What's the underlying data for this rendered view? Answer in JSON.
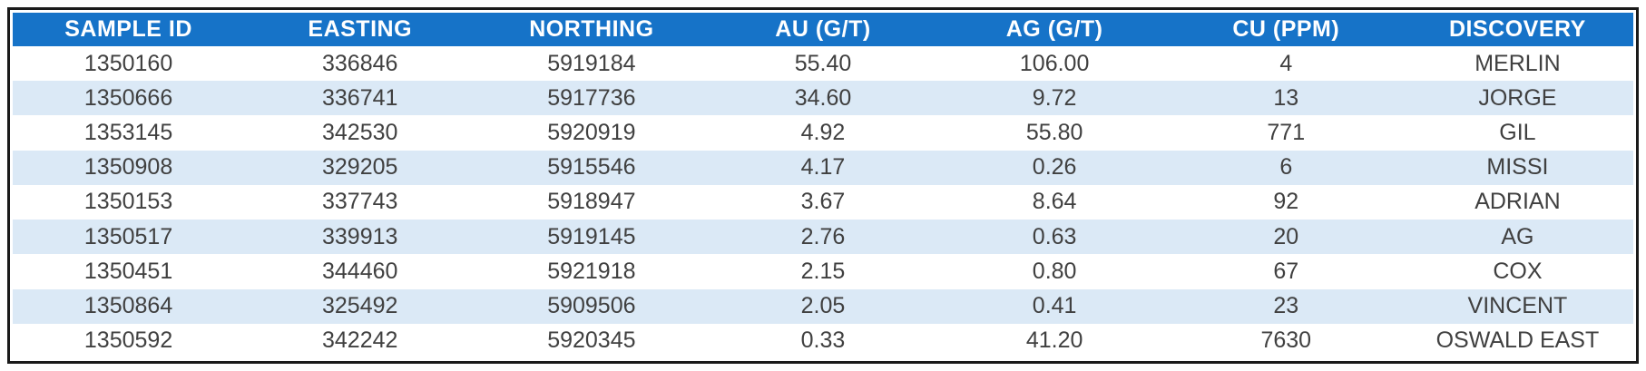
{
  "chart_data": {
    "type": "table",
    "columns": [
      "SAMPLE ID",
      "EASTING",
      "NORTHING",
      "AU (G/T)",
      "AG (G/T)",
      "CU (PPM)",
      "DISCOVERY"
    ],
    "rows": [
      [
        "1350160",
        "336846",
        "5919184",
        "55.40",
        "106.00",
        "4",
        "MERLIN"
      ],
      [
        "1350666",
        "336741",
        "5917736",
        "34.60",
        "9.72",
        "13",
        "JORGE"
      ],
      [
        "1353145",
        "342530",
        "5920919",
        "4.92",
        "55.80",
        "771",
        "GIL"
      ],
      [
        "1350908",
        "329205",
        "5915546",
        "4.17",
        "0.26",
        "6",
        "MISSI"
      ],
      [
        "1350153",
        "337743",
        "5918947",
        "3.67",
        "8.64",
        "92",
        "ADRIAN"
      ],
      [
        "1350517",
        "339913",
        "5919145",
        "2.76",
        "0.63",
        "20",
        "AG"
      ],
      [
        "1350451",
        "344460",
        "5921918",
        "2.15",
        "0.80",
        "67",
        "COX"
      ],
      [
        "1350864",
        "325492",
        "5909506",
        "2.05",
        "0.41",
        "23",
        "VINCENT"
      ],
      [
        "1350592",
        "342242",
        "5920345",
        "0.33",
        "41.20",
        "7630",
        "OSWALD EAST"
      ]
    ],
    "title": "",
    "layout": {
      "header_position": "top",
      "row_striping": "odd-white-even-blue",
      "text_align": "center",
      "grid": "off"
    }
  },
  "colors": {
    "header_bg": "#1673c8",
    "header_text": "#ffffff",
    "row_bg": "#ffffff",
    "row_alt_bg": "#dbe9f6",
    "cell_text": "#404040",
    "border": "#1a1a1a"
  }
}
